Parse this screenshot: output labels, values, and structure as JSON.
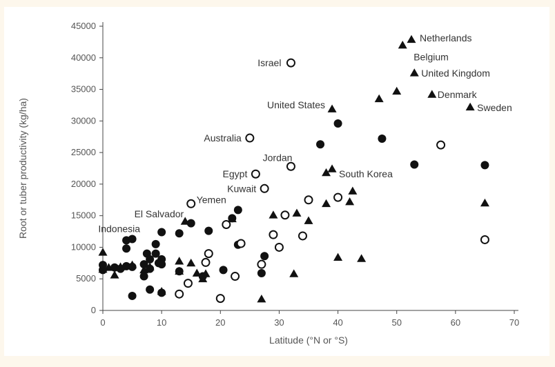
{
  "chart_data": {
    "type": "scatter",
    "title": "",
    "xlabel": "Latitude (°N or °S)",
    "ylabel": "Root or tuber productivity (kg/ha)",
    "xlim": [
      0,
      70
    ],
    "ylim": [
      0,
      45000
    ],
    "xticks": [
      0,
      10,
      20,
      30,
      40,
      50,
      60,
      70
    ],
    "yticks": [
      0,
      5000,
      10000,
      15000,
      20000,
      25000,
      30000,
      35000,
      40000,
      45000
    ],
    "ytick_labels": [
      "0",
      "5000",
      "10000",
      "15000",
      "20000",
      "25000",
      "30000",
      "35000",
      "40000",
      "45000"
    ],
    "grid": false,
    "series": [
      {
        "marker": "filled-triangle",
        "color": "#111111",
        "points": [
          [
            0,
            9200
          ],
          [
            0,
            6500
          ],
          [
            1,
            6800
          ],
          [
            2,
            5600
          ],
          [
            3,
            6900
          ],
          [
            5,
            7200
          ],
          [
            7,
            6400
          ],
          [
            8,
            6900
          ],
          [
            10,
            3000
          ],
          [
            13,
            7800
          ],
          [
            13,
            6200
          ],
          [
            14,
            14100
          ],
          [
            15,
            7500
          ],
          [
            16,
            5900
          ],
          [
            17,
            5000
          ],
          [
            17.5,
            5800
          ],
          [
            22,
            14500
          ],
          [
            27,
            1800
          ],
          [
            29,
            15100
          ],
          [
            32.5,
            5800
          ],
          [
            33,
            15400
          ],
          [
            35,
            14200
          ],
          [
            38,
            16900
          ],
          [
            38,
            21800
          ],
          [
            39,
            22400
          ],
          [
            39,
            31900
          ],
          [
            40,
            8400
          ],
          [
            42,
            17200
          ],
          [
            42.5,
            18900
          ],
          [
            44,
            8200
          ],
          [
            47,
            33500
          ],
          [
            50,
            34700
          ],
          [
            51,
            42000
          ],
          [
            52.5,
            42900
          ],
          [
            53,
            37600
          ],
          [
            56,
            34200
          ],
          [
            62.5,
            32200
          ],
          [
            65,
            17000
          ]
        ]
      },
      {
        "marker": "filled-circle",
        "color": "#111111",
        "points": [
          [
            0,
            6400
          ],
          [
            0,
            7200
          ],
          [
            2,
            6800
          ],
          [
            3,
            6600
          ],
          [
            4,
            7000
          ],
          [
            4,
            9800
          ],
          [
            4,
            11100
          ],
          [
            5,
            11300
          ],
          [
            5,
            2300
          ],
          [
            5,
            6900
          ],
          [
            7,
            7300
          ],
          [
            7,
            5400
          ],
          [
            7.5,
            9000
          ],
          [
            8,
            6600
          ],
          [
            8,
            8100
          ],
          [
            8,
            3300
          ],
          [
            9,
            10500
          ],
          [
            9,
            9000
          ],
          [
            9.5,
            7500
          ],
          [
            10,
            12400
          ],
          [
            10,
            8100
          ],
          [
            10,
            7300
          ],
          [
            10,
            2800
          ],
          [
            13,
            12200
          ],
          [
            13,
            6200
          ],
          [
            15,
            13800
          ],
          [
            17,
            5400
          ],
          [
            18,
            12600
          ],
          [
            20.5,
            6400
          ],
          [
            22,
            14600
          ],
          [
            23,
            10400
          ],
          [
            23,
            15900
          ],
          [
            27,
            5900
          ],
          [
            27.5,
            8600
          ],
          [
            37,
            26300
          ],
          [
            40,
            29600
          ],
          [
            47.5,
            27200
          ],
          [
            53,
            23100
          ],
          [
            65,
            23000
          ]
        ]
      },
      {
        "marker": "open-circle",
        "color": "#111111",
        "points": [
          [
            13,
            2600
          ],
          [
            14.5,
            4300
          ],
          [
            15,
            16900
          ],
          [
            17.5,
            7600
          ],
          [
            18,
            9000
          ],
          [
            20,
            1900
          ],
          [
            21,
            13600
          ],
          [
            22.5,
            5400
          ],
          [
            23.5,
            10600
          ],
          [
            25,
            27300
          ],
          [
            26,
            21600
          ],
          [
            27,
            7300
          ],
          [
            27.5,
            19300
          ],
          [
            29,
            12000
          ],
          [
            30,
            10000
          ],
          [
            31,
            15100
          ],
          [
            32,
            22800
          ],
          [
            32,
            39200
          ],
          [
            34,
            11800
          ],
          [
            35,
            17500
          ],
          [
            40,
            17900
          ],
          [
            57.5,
            26200
          ],
          [
            65,
            11200
          ]
        ]
      }
    ],
    "annotations": [
      {
        "text": "Netherlands",
        "x": 52.5,
        "y": 42900
      },
      {
        "text": "Belgium",
        "x": 51,
        "y": 42000
      },
      {
        "text": "United Kingdom",
        "x": 53,
        "y": 37600
      },
      {
        "text": "Denmark",
        "x": 56,
        "y": 34200
      },
      {
        "text": "Sweden",
        "x": 62.5,
        "y": 32200
      },
      {
        "text": "Israel",
        "x": 32,
        "y": 39200
      },
      {
        "text": "United States",
        "x": 39,
        "y": 31900
      },
      {
        "text": "Australia",
        "x": 25,
        "y": 27300
      },
      {
        "text": "Jordan",
        "x": 32,
        "y": 22800
      },
      {
        "text": "Egypt",
        "x": 26,
        "y": 21600
      },
      {
        "text": "South Korea",
        "x": 39,
        "y": 22400
      },
      {
        "text": "Kuwait",
        "x": 27.5,
        "y": 19300
      },
      {
        "text": "Yemen",
        "x": 15,
        "y": 16900
      },
      {
        "text": "El Salvador",
        "x": 14,
        "y": 14100
      },
      {
        "text": "Indonesia",
        "x": 4,
        "y": 11100
      }
    ]
  }
}
